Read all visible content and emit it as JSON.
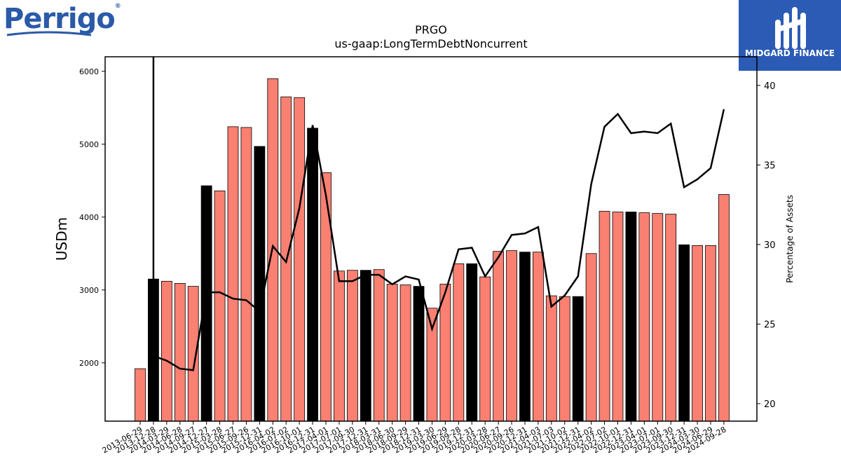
{
  "header": {
    "logo_text": "Perrigo",
    "badge_text": "MIDGARD FINANCE"
  },
  "colors": {
    "bar_default": "#fa8072",
    "bar_highlight": "#000000",
    "line": "#000000",
    "logo_blue": "#2a5aa8",
    "badge_blue": "#2b5bb5"
  },
  "chart_data": {
    "type": "bar",
    "title": "PRGO",
    "subtitle": "us-gaap:LongTermDebtNoncurrent",
    "ylabel": "USDm",
    "y2label": "Percentage of Assets",
    "ylim": [
      1200,
      6200
    ],
    "y2lim": [
      18.9,
      41.8
    ],
    "yticks": [
      2000,
      3000,
      4000,
      5000,
      6000
    ],
    "y2ticks": [
      20,
      25,
      30,
      35,
      40
    ],
    "grid": false,
    "categories": [
      "2013-06-29",
      "2013-12-28",
      "2014-03-29",
      "2014-06-28",
      "2014-09-27",
      "2014-12-27",
      "2015-03-28",
      "2015-06-27",
      "2015-09-26",
      "2015-12-31",
      "2016-04-02",
      "2016-07-02",
      "2016-10-01",
      "2016-12-31",
      "2017-04-01",
      "2017-07-01",
      "2017-09-30",
      "2017-12-31",
      "2018-03-31",
      "2018-06-30",
      "2018-09-29",
      "2018-12-31",
      "2019-03-30",
      "2019-06-29",
      "2019-09-28",
      "2019-12-31",
      "2020-03-28",
      "2020-06-27",
      "2020-09-26",
      "2020-12-31",
      "2021-04-03",
      "2021-07-03",
      "2021-10-02",
      "2021-12-31",
      "2022-04-02",
      "2022-07-02",
      "2022-10-01",
      "2022-12-31",
      "2023-04-01",
      "2023-07-01",
      "2023-09-30",
      "2023-12-31",
      "2024-03-30",
      "2024-06-29",
      "2024-09-28"
    ],
    "series": [
      {
        "type": "bar",
        "values": [
          1920,
          3150,
          3120,
          3090,
          3050,
          4430,
          4360,
          5240,
          5230,
          4970,
          5900,
          5650,
          5640,
          5220,
          4610,
          3260,
          3270,
          3270,
          3280,
          3080,
          3070,
          3050,
          2750,
          3080,
          3360,
          3360,
          3180,
          3530,
          3540,
          3520,
          3520,
          2920,
          2910,
          2910,
          3500,
          4080,
          4070,
          4070,
          4060,
          4050,
          4040,
          3620,
          3610,
          3610,
          4310
        ],
        "highlight": [
          false,
          true,
          false,
          false,
          false,
          true,
          false,
          false,
          false,
          true,
          false,
          false,
          false,
          true,
          false,
          false,
          false,
          true,
          false,
          false,
          false,
          true,
          false,
          false,
          false,
          true,
          false,
          false,
          false,
          true,
          false,
          false,
          false,
          true,
          false,
          false,
          false,
          true,
          false,
          false,
          false,
          true,
          false,
          false,
          false
        ]
      },
      {
        "type": "line",
        "axis": "right",
        "values": [
          null,
          23.0,
          22.7,
          22.2,
          22.1,
          27.0,
          27.0,
          26.6,
          26.5,
          25.8,
          29.9,
          28.9,
          32.3,
          37.5,
          33.1,
          27.7,
          27.7,
          28.1,
          28.1,
          27.5,
          28.0,
          27.8,
          24.7,
          27.0,
          29.7,
          29.8,
          28.0,
          29.2,
          30.6,
          30.7,
          31.1,
          26.1,
          26.8,
          28.0,
          33.8,
          37.4,
          38.2,
          37.0,
          37.1,
          37.0,
          37.6,
          33.6,
          34.1,
          34.8,
          38.5
        ]
      }
    ]
  }
}
